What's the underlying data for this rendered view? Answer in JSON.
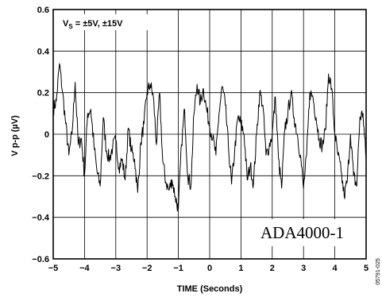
{
  "chart_data": {
    "type": "line",
    "title": "",
    "xlabel": "TIME (Seconds)",
    "ylabel": "V p-p (µV)",
    "xlim": [
      -5,
      5
    ],
    "ylim": [
      -0.6,
      0.6
    ],
    "x_ticks": [
      "-5",
      "-4",
      "-3",
      "-2",
      "-1",
      "0",
      "1",
      "2",
      "3",
      "4",
      "5"
    ],
    "y_ticks": [
      "0.6",
      "0.4",
      "0.2",
      "0",
      "-0.2",
      "-0.4",
      "-0.6"
    ],
    "grid": true,
    "legend": "none",
    "annotations": {
      "supply_prefix": "V",
      "supply_sub": "S",
      "supply_suffix": " = ±5V, ±15V",
      "part_number": "ADA4000-1",
      "figure_id": "05791-025"
    },
    "series": [
      {
        "x": [
          -5,
          -4.9,
          -4.8,
          -4.7,
          -4.6,
          -4.5,
          -4.4,
          -4.3,
          -4.2,
          -4.1,
          -4,
          -3.9,
          -3.8,
          -3.7,
          -3.6,
          -3.5,
          -3.4,
          -3.3,
          -3.2,
          -3.1,
          -3,
          -2.9,
          -2.8,
          -2.7,
          -2.6,
          -2.5,
          -2.4,
          -2.3,
          -2.2,
          -2.1,
          -2,
          -1.9,
          -1.8,
          -1.7,
          -1.6,
          -1.5,
          -1.4,
          -1.3,
          -1.2,
          -1.1,
          -1,
          -0.9,
          -0.8,
          -0.7,
          -0.6,
          -0.5,
          -0.4,
          -0.3,
          -0.2,
          -0.1,
          0,
          0.1,
          0.2,
          0.3,
          0.4,
          0.5,
          0.6,
          0.7,
          0.8,
          0.9,
          1,
          1.1,
          1.2,
          1.3,
          1.4,
          1.5,
          1.6,
          1.7,
          1.8,
          1.9,
          2,
          2.1,
          2.2,
          2.3,
          2.4,
          2.5,
          2.6,
          2.7,
          2.8,
          2.9,
          3,
          3.1,
          3.2,
          3.3,
          3.4,
          3.5,
          3.6,
          3.7,
          3.8,
          3.9,
          4,
          4.1,
          4.2,
          4.3,
          4.4,
          4.5,
          4.6,
          4.7,
          4.8,
          4.9,
          5
        ],
        "y": [
          0.12,
          0.16,
          0.34,
          0.2,
          0.05,
          -0.1,
          0.0,
          0.25,
          -0.05,
          -0.02,
          -0.2,
          0.1,
          0.12,
          -0.05,
          -0.18,
          -0.25,
          0.08,
          -0.08,
          -0.12,
          -0.06,
          -0.03,
          -0.16,
          -0.12,
          -0.22,
          0.03,
          -0.08,
          -0.12,
          -0.28,
          -0.04,
          0.05,
          0.2,
          0.24,
          0.18,
          -0.05,
          0.2,
          -0.13,
          -0.23,
          -0.27,
          -0.22,
          -0.3,
          -0.36,
          -0.05,
          0.12,
          -0.2,
          -0.25,
          0.1,
          0.24,
          0.15,
          0.22,
          0.12,
          0.04,
          -0.02,
          -0.1,
          0.1,
          0.23,
          0.14,
          -0.06,
          -0.24,
          -0.08,
          0.08,
          0.05,
          0.0,
          -0.22,
          -0.15,
          -0.24,
          0.0,
          0.2,
          0.14,
          -0.1,
          -0.06,
          0.0,
          0.18,
          -0.12,
          -0.26,
          0.02,
          0.1,
          0.2,
          0.08,
          0.0,
          -0.1,
          -0.26,
          -0.1,
          0.2,
          0.18,
          0.08,
          -0.02,
          -0.06,
          0.02,
          0.29,
          0.22,
          0.0,
          -0.1,
          -0.18,
          -0.3,
          -0.22,
          0.0,
          -0.2,
          -0.25,
          0.08,
          0.1,
          -0.13
        ]
      }
    ]
  }
}
